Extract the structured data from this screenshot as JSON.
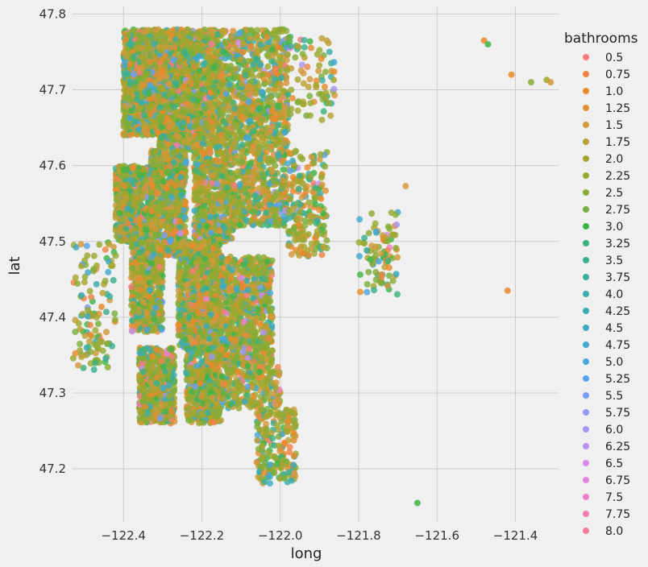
{
  "chart_data": {
    "type": "scatter",
    "xlabel": "long",
    "ylabel": "lat",
    "xlim": [
      -122.53,
      -121.29
    ],
    "ylim": [
      47.13,
      47.81
    ],
    "grid": true,
    "legend": {
      "title": "bathrooms",
      "placement": "right",
      "entries": [
        {
          "label": "0.5",
          "color": "#f47d7a"
        },
        {
          "label": "0.75",
          "color": "#ef8446"
        },
        {
          "label": "1.0",
          "color": "#e98a2b"
        },
        {
          "label": "1.25",
          "color": "#df9033"
        },
        {
          "label": "1.5",
          "color": "#d1983c"
        },
        {
          "label": "1.75",
          "color": "#bda035"
        },
        {
          "label": "2.0",
          "color": "#a6a52e"
        },
        {
          "label": "2.25",
          "color": "#98a82f"
        },
        {
          "label": "2.5",
          "color": "#8aab35"
        },
        {
          "label": "2.75",
          "color": "#77ae3c"
        },
        {
          "label": "3.0",
          "color": "#3fb449"
        },
        {
          "label": "3.25",
          "color": "#3cb27a"
        },
        {
          "label": "3.5",
          "color": "#3bb08f"
        },
        {
          "label": "3.75",
          "color": "#3baf9f"
        },
        {
          "label": "4.0",
          "color": "#3badaa"
        },
        {
          "label": "4.25",
          "color": "#3cabb7"
        },
        {
          "label": "4.5",
          "color": "#3eaac3"
        },
        {
          "label": "4.75",
          "color": "#44a8d1"
        },
        {
          "label": "5.0",
          "color": "#4aa6dd"
        },
        {
          "label": "5.25",
          "color": "#57a2ec"
        },
        {
          "label": "5.5",
          "color": "#779ef2"
        },
        {
          "label": "5.75",
          "color": "#939af4"
        },
        {
          "label": "6.0",
          "color": "#a996f3"
        },
        {
          "label": "6.25",
          "color": "#bd91f0"
        },
        {
          "label": "6.5",
          "color": "#d989ea"
        },
        {
          "label": "6.75",
          "color": "#e681dd"
        },
        {
          "label": "7.5",
          "color": "#ee7ec9"
        },
        {
          "label": "7.75",
          "color": "#f27bb3"
        },
        {
          "label": "8.0",
          "color": "#f47a99"
        }
      ]
    },
    "x_ticks": [
      -122.4,
      -122.2,
      -122.0,
      -121.8,
      -121.6,
      -121.4
    ],
    "x_tick_labels": [
      "−122.4",
      "−122.2",
      "−122.0",
      "−121.8",
      "−121.6",
      "−121.4"
    ],
    "y_ticks": [
      47.2,
      47.3,
      47.4,
      47.5,
      47.6,
      47.7,
      47.8
    ],
    "y_tick_labels": [
      "47.2",
      "47.3",
      "47.4",
      "47.5",
      "47.6",
      "47.7",
      "47.8"
    ],
    "clusters": [
      {
        "x": [
          -122.4,
          -122.3
        ],
        "y": [
          47.64,
          47.78
        ],
        "n": 1100
      },
      {
        "x": [
          -122.31,
          -122.22
        ],
        "y": [
          47.62,
          47.78
        ],
        "n": 800
      },
      {
        "x": [
          -122.25,
          -122.15
        ],
        "y": [
          47.65,
          47.78
        ],
        "n": 600
      },
      {
        "x": [
          -122.15,
          -121.98
        ],
        "y": [
          47.66,
          47.78
        ],
        "n": 500
      },
      {
        "x": [
          -122.42,
          -122.33
        ],
        "y": [
          47.5,
          47.6
        ],
        "n": 600
      },
      {
        "x": [
          -122.33,
          -122.24
        ],
        "y": [
          47.48,
          47.62
        ],
        "n": 700
      },
      {
        "x": [
          -122.22,
          -122.12
        ],
        "y": [
          47.5,
          47.66
        ],
        "n": 700
      },
      {
        "x": [
          -122.12,
          -121.98
        ],
        "y": [
          47.52,
          47.68
        ],
        "n": 600
      },
      {
        "x": [
          -122.38,
          -122.3
        ],
        "y": [
          47.38,
          47.5
        ],
        "n": 500
      },
      {
        "x": [
          -122.26,
          -122.15
        ],
        "y": [
          47.36,
          47.5
        ],
        "n": 800
      },
      {
        "x": [
          -122.15,
          -122.02
        ],
        "y": [
          47.34,
          47.48
        ],
        "n": 700
      },
      {
        "x": [
          -122.36,
          -122.27
        ],
        "y": [
          47.26,
          47.36
        ],
        "n": 550
      },
      {
        "x": [
          -122.24,
          -122.15
        ],
        "y": [
          47.26,
          47.36
        ],
        "n": 500
      },
      {
        "x": [
          -122.15,
          -122.0
        ],
        "y": [
          47.28,
          47.34
        ],
        "n": 250
      },
      {
        "x": [
          -122.06,
          -121.96
        ],
        "y": [
          47.18,
          47.28
        ],
        "n": 200
      },
      {
        "x": [
          -121.98,
          -121.88
        ],
        "y": [
          47.48,
          47.62
        ],
        "n": 200
      },
      {
        "x": [
          -122.53,
          -122.42
        ],
        "y": [
          47.33,
          47.5
        ],
        "n": 120
      },
      {
        "x": [
          -121.8,
          -121.7
        ],
        "y": [
          47.43,
          47.54
        ],
        "n": 90
      },
      {
        "x": [
          -121.98,
          -121.86
        ],
        "y": [
          47.66,
          47.77
        ],
        "n": 80
      }
    ],
    "outliers": [
      {
        "x": -121.48,
        "y": 47.765
      },
      {
        "x": -121.47,
        "y": 47.76
      },
      {
        "x": -121.41,
        "y": 47.72
      },
      {
        "x": -121.36,
        "y": 47.71
      },
      {
        "x": -121.32,
        "y": 47.713
      },
      {
        "x": -121.31,
        "y": 47.71
      },
      {
        "x": -121.68,
        "y": 47.573
      },
      {
        "x": -121.42,
        "y": 47.435
      },
      {
        "x": -121.65,
        "y": 47.155
      }
    ]
  }
}
